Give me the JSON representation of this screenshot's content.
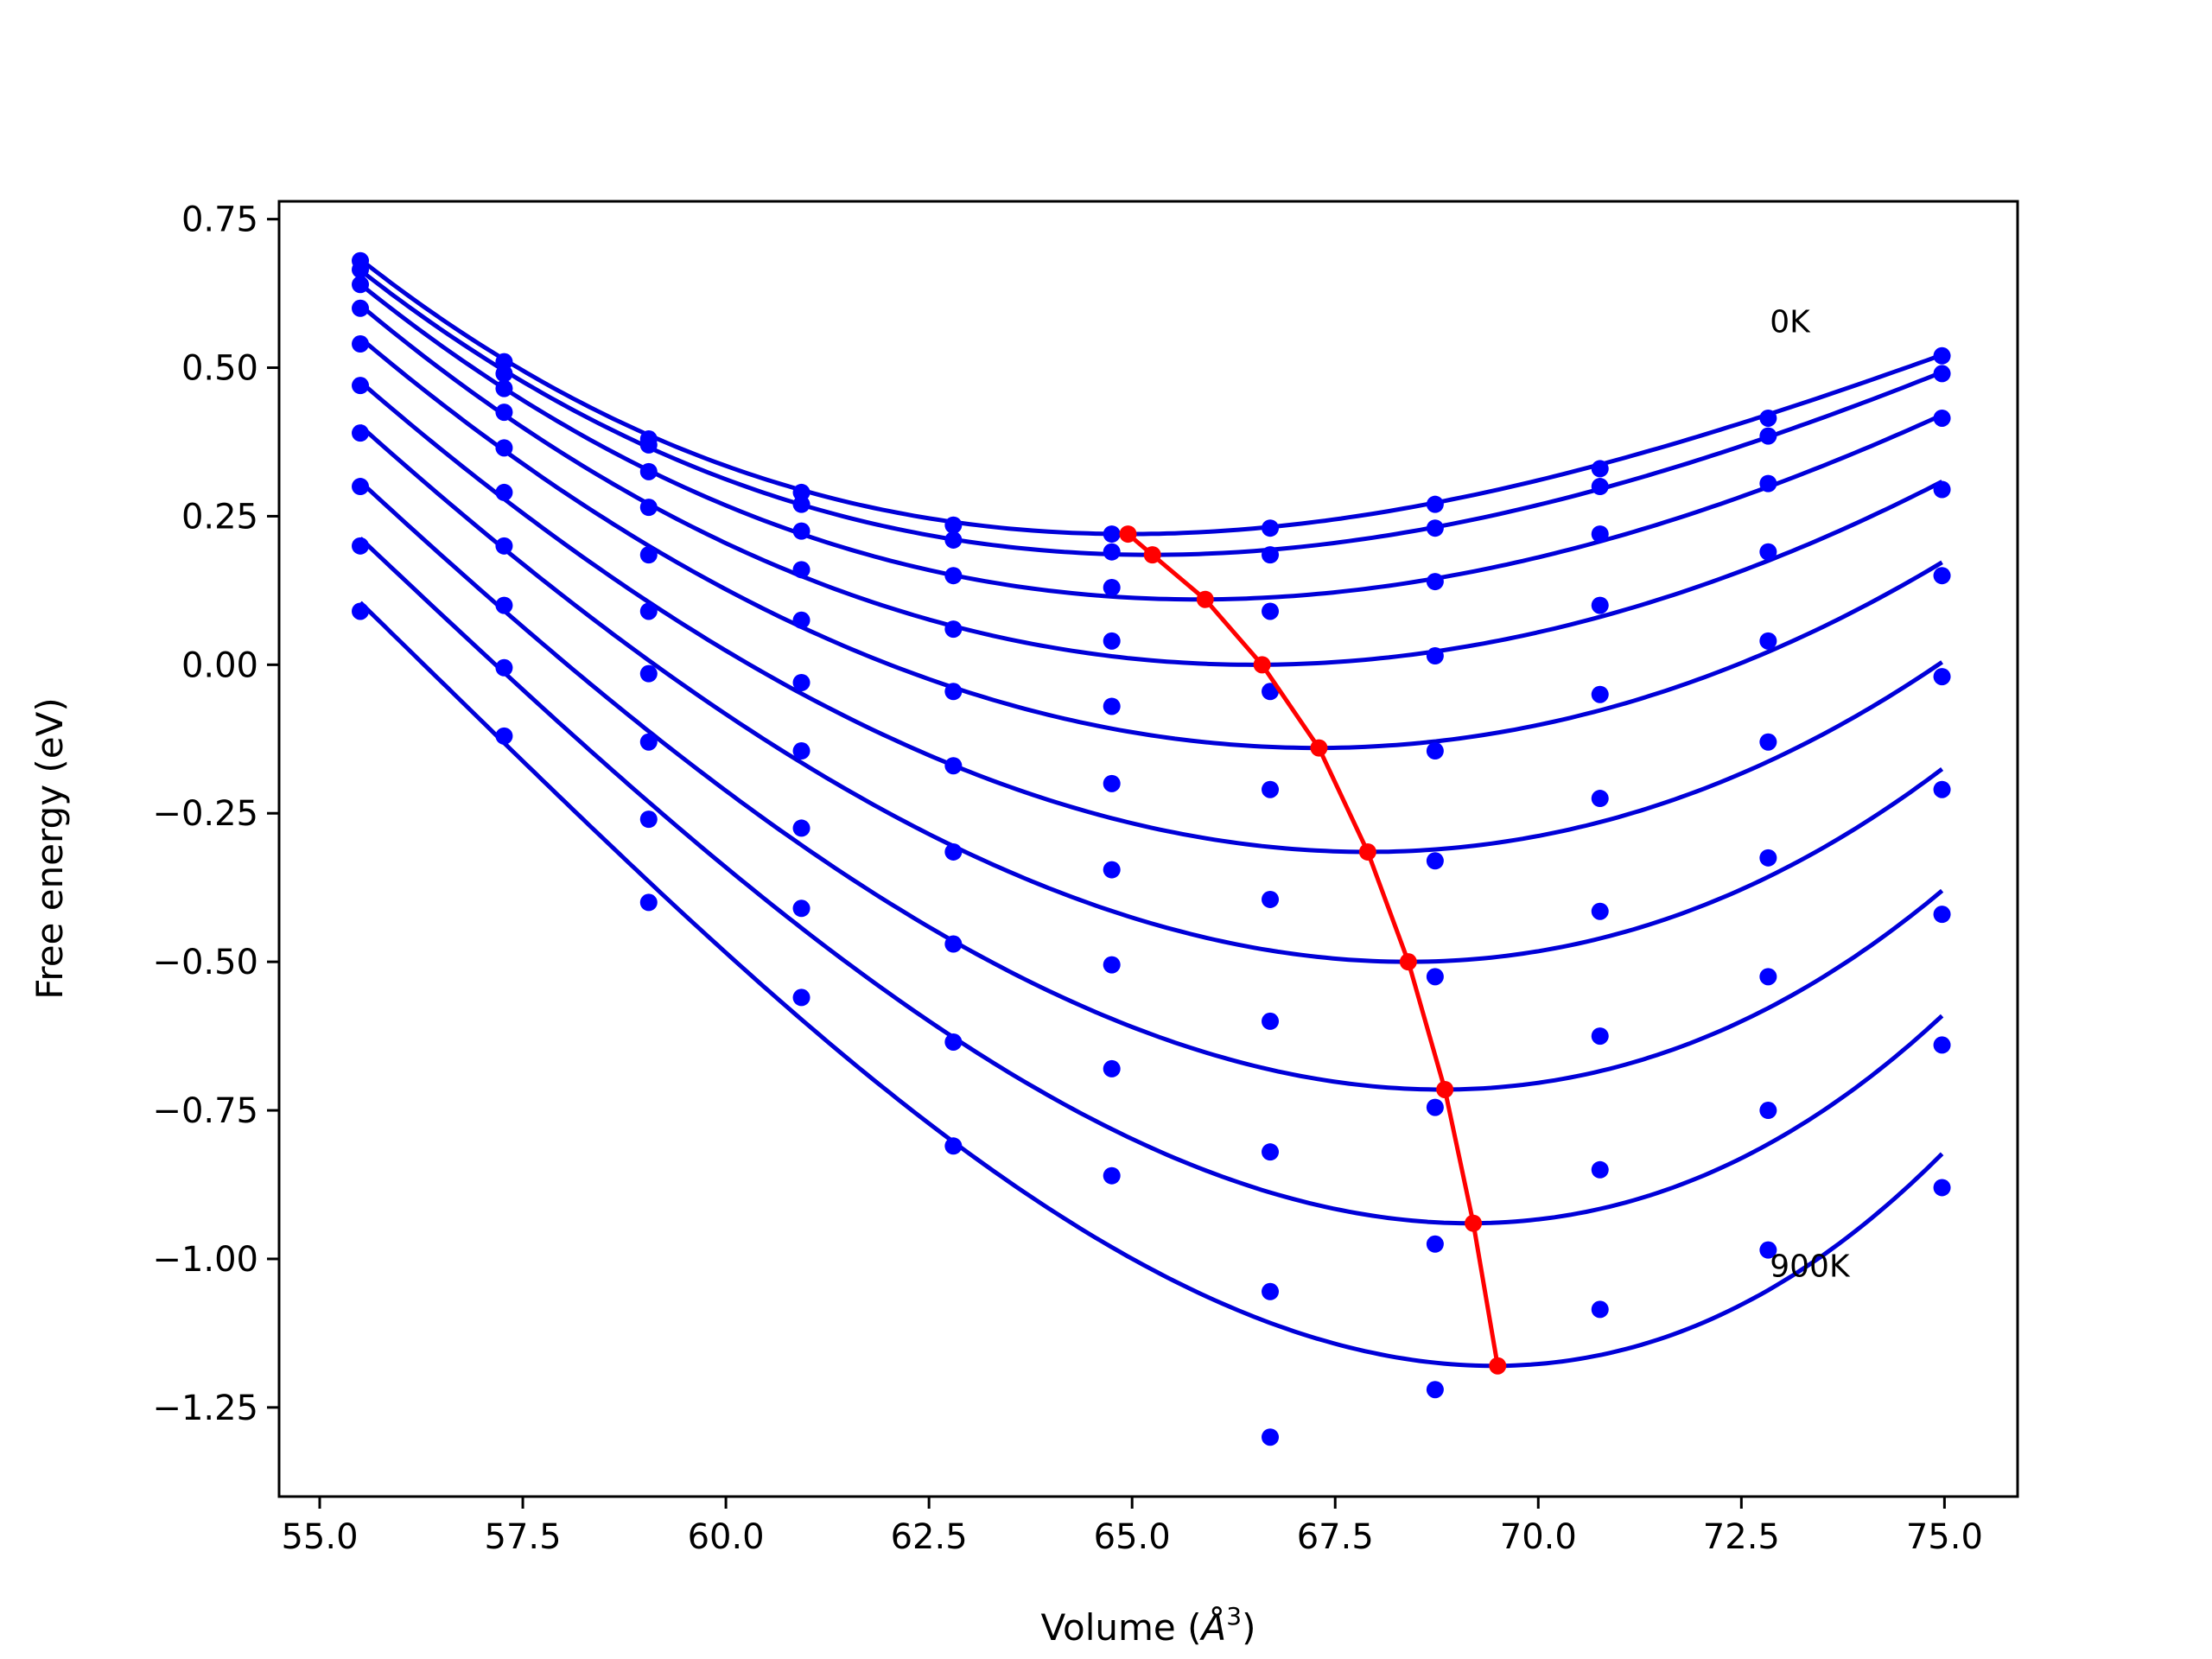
{
  "chart_data": {
    "type": "scatter",
    "xlabel": "Volume (",
    "xlabel_unit": "Å",
    "xlabel_exp": "3",
    "xlabel_close": ")",
    "ylabel": "Free energy (eV)",
    "xlim": [
      54.5,
      75.9
    ],
    "ylim": [
      -1.4,
      0.78
    ],
    "x_ticks": [
      55.0,
      57.5,
      60.0,
      62.5,
      65.0,
      67.5,
      70.0,
      72.5,
      75.0
    ],
    "x_tick_labels": [
      "55.0",
      "57.5",
      "60.0",
      "62.5",
      "65.0",
      "67.5",
      "70.0",
      "72.5",
      "75.0"
    ],
    "y_ticks": [
      0.75,
      0.5,
      0.25,
      0.0,
      -0.25,
      -0.5,
      -0.75,
      -1.0,
      -1.25
    ],
    "y_tick_labels": [
      "0.75",
      "0.50",
      "0.25",
      "0.00",
      "−0.25",
      "−0.50",
      "−0.75",
      "−1.00",
      "−1.25"
    ],
    "grid": false,
    "volumes": [
      55.5,
      57.27,
      59.05,
      60.93,
      62.8,
      64.75,
      66.7,
      68.73,
      70.76,
      72.83,
      74.97
    ],
    "series": [
      {
        "points": [
          0.68,
          0.51,
          0.38,
          0.29,
          0.235,
          0.22,
          0.23,
          0.27,
          0.33,
          0.415,
          0.52
        ],
        "min": [
          64.95,
          0.22
        ]
      },
      {
        "points": [
          0.665,
          0.49,
          0.37,
          0.27,
          0.21,
          0.19,
          0.185,
          0.23,
          0.3,
          0.385,
          0.49
        ],
        "min": [
          65.25,
          0.185
        ]
      },
      {
        "points": [
          0.64,
          0.465,
          0.325,
          0.225,
          0.15,
          0.13,
          0.09,
          0.14,
          0.22,
          0.305,
          0.415
        ],
        "min": [
          65.9,
          0.11
        ]
      },
      {
        "points": [
          0.6,
          0.425,
          0.265,
          0.16,
          0.06,
          0.04,
          -0.045,
          0.015,
          0.1,
          0.19,
          0.295
        ],
        "min": [
          66.6,
          0.0
        ]
      },
      {
        "points": [
          0.54,
          0.365,
          0.185,
          0.075,
          -0.045,
          -0.07,
          -0.21,
          -0.145,
          -0.05,
          0.04,
          0.15
        ],
        "min": [
          67.3,
          -0.14
        ]
      },
      {
        "points": [
          0.47,
          0.29,
          0.09,
          -0.03,
          -0.17,
          -0.2,
          -0.395,
          -0.33,
          -0.225,
          -0.13,
          -0.02
        ],
        "min": [
          67.9,
          -0.315
        ]
      },
      {
        "points": [
          0.39,
          0.2,
          -0.015,
          -0.145,
          -0.315,
          -0.345,
          -0.6,
          -0.525,
          -0.415,
          -0.325,
          -0.21
        ],
        "min": [
          68.4,
          -0.5
        ]
      },
      {
        "points": [
          0.3,
          0.1,
          -0.13,
          -0.275,
          -0.47,
          -0.505,
          -0.82,
          -0.745,
          -0.625,
          -0.525,
          -0.42
        ],
        "min": [
          68.85,
          -0.715
        ]
      },
      {
        "points": [
          0.2,
          -0.005,
          -0.26,
          -0.41,
          -0.635,
          -0.68,
          -1.055,
          -0.975,
          -0.85,
          -0.75,
          -0.64
        ],
        "min": [
          69.2,
          -0.94
        ]
      },
      {
        "points": [
          0.09,
          -0.12,
          -0.4,
          -0.56,
          -0.81,
          -0.86,
          -1.3,
          -1.22,
          -1.085,
          -0.985,
          -0.88
        ],
        "min": [
          69.5,
          -1.18
        ]
      }
    ],
    "min_line": [
      [
        64.95,
        0.22
      ],
      [
        65.25,
        0.185
      ],
      [
        65.9,
        0.11
      ],
      [
        66.6,
        0.0
      ],
      [
        67.3,
        -0.14
      ],
      [
        67.9,
        -0.315
      ],
      [
        68.4,
        -0.5
      ],
      [
        68.85,
        -0.715
      ],
      [
        69.2,
        -0.94
      ],
      [
        69.5,
        -1.18
      ]
    ],
    "annotations": [
      {
        "text": "0K",
        "x": 72.85,
        "y": 0.56
      },
      {
        "text": "900K",
        "x": 72.85,
        "y": -1.03
      }
    ],
    "colors": {
      "fit": "#0000d8",
      "points": "#0000ff",
      "minima": "#ff0000"
    }
  }
}
